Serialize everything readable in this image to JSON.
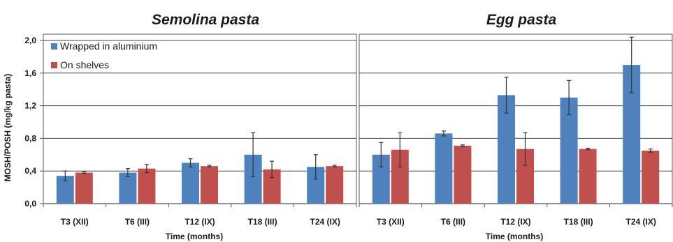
{
  "chart_data": {
    "type": "bar",
    "ylabel": "MOSH/POSH (mg/kg pasta)",
    "ylim": [
      0,
      2.0
    ],
    "yticks": [
      "0,0",
      "0,4",
      "0,8",
      "1,2",
      "1,6",
      "2,0"
    ],
    "ytick_values": [
      0,
      0.4,
      0.8,
      1.2,
      1.6,
      2.0
    ],
    "grid": true,
    "legend": {
      "placement": "top-left",
      "entries": [
        "Wrapped in aluminium",
        "On shelves"
      ]
    },
    "colors": {
      "wrapped": "#4f81bd",
      "shelves": "#c0504d"
    },
    "panels": [
      {
        "title": "Semolina pasta",
        "xlabel": "Time (months)",
        "categories": [
          "T3 (XII)",
          "T6 (III)",
          "T12 (IX)",
          "T18 (III)",
          "T24 (IX)"
        ],
        "series": [
          {
            "name": "Wrapped in aluminium",
            "values": [
              0.34,
              0.38,
              0.5,
              0.6,
              0.45
            ],
            "errors": [
              0.06,
              0.05,
              0.05,
              0.27,
              0.15
            ]
          },
          {
            "name": "On shelves",
            "values": [
              0.38,
              0.43,
              0.46,
              0.42,
              0.46
            ],
            "errors": [
              0.01,
              0.05,
              0.01,
              0.1,
              0.01
            ]
          }
        ]
      },
      {
        "title": "Egg pasta",
        "xlabel": "Time (months)",
        "categories": [
          "T3 (XII)",
          "T6 (III)",
          "T12 (IX)",
          "T18 (III)",
          "T24 (IX)"
        ],
        "series": [
          {
            "name": "Wrapped in aluminium",
            "values": [
              0.6,
              0.86,
              1.33,
              1.3,
              1.7
            ],
            "errors": [
              0.15,
              0.03,
              0.22,
              0.21,
              0.34
            ]
          },
          {
            "name": "On shelves",
            "values": [
              0.66,
              0.71,
              0.67,
              0.67,
              0.65
            ],
            "errors": [
              0.21,
              0.01,
              0.2,
              0.01,
              0.02
            ]
          }
        ]
      }
    ]
  }
}
